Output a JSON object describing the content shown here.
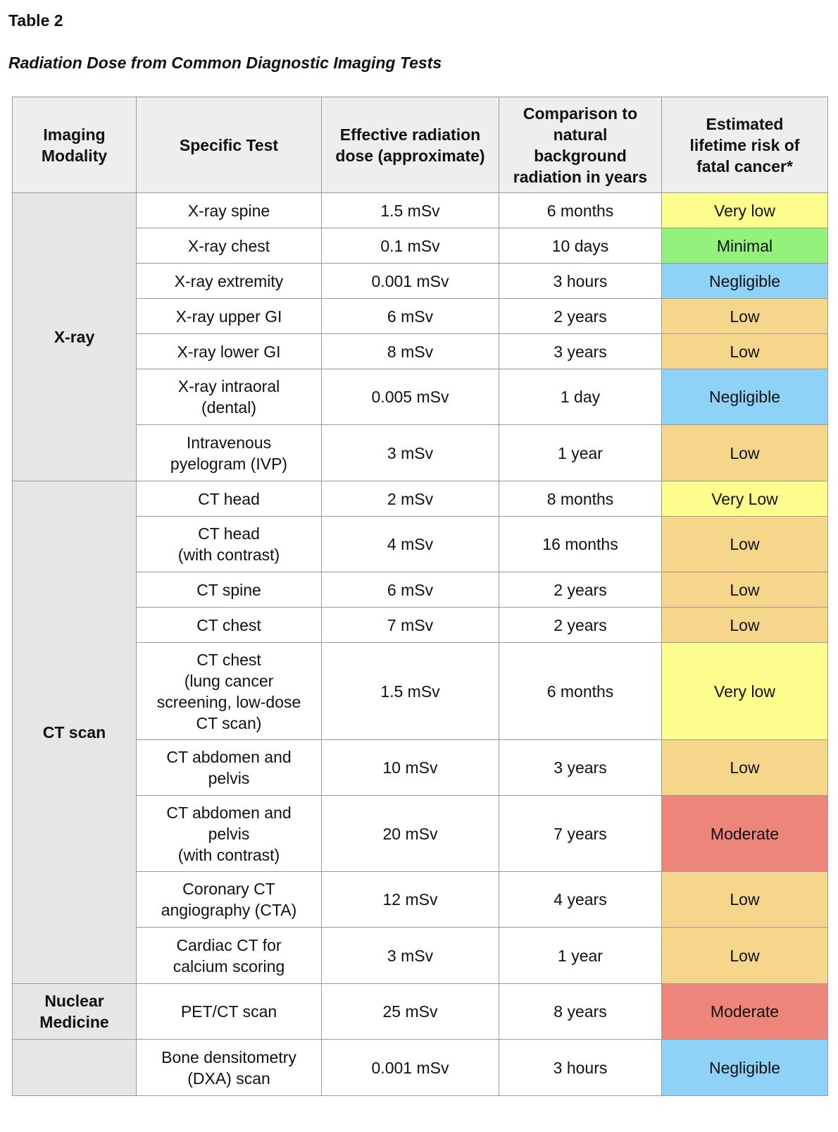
{
  "title": "Table 2",
  "subtitle": "Radiation Dose from Common Diagnostic Imaging Tests",
  "colors": {
    "header_bg": "#eeeeee",
    "modality_bg": "#e6e6e6",
    "risk_yellow": "#fdfd8e",
    "risk_green": "#93f27b",
    "risk_blue": "#8fd2f7",
    "risk_orange": "#f6d68b",
    "risk_red": "#ee857a"
  },
  "headers": {
    "modality": "Imaging\nModality",
    "test": "Specific Test",
    "dose": "Effective radiation\ndose (approximate)",
    "comparison": "Comparison to\nnatural\nbackground\nradiation in years",
    "risk": "Estimated\nlifetime risk of\nfatal cancer*"
  },
  "groups": [
    {
      "modality": "X-ray",
      "rows": [
        {
          "test": "X-ray spine",
          "dose": "1.5 mSv",
          "comparison": "6 months",
          "risk": "Very low",
          "risk_color": "yellow"
        },
        {
          "test": "X-ray chest",
          "dose": "0.1 mSv",
          "comparison": "10 days",
          "risk": "Minimal",
          "risk_color": "green"
        },
        {
          "test": "X-ray extremity",
          "dose": "0.001 mSv",
          "comparison": "3 hours",
          "risk": "Negligible",
          "risk_color": "blue"
        },
        {
          "test": "X-ray upper GI",
          "dose": "6 mSv",
          "comparison": "2 years",
          "risk": "Low",
          "risk_color": "orange"
        },
        {
          "test": "X-ray lower GI",
          "dose": "8 mSv",
          "comparison": "3 years",
          "risk": "Low",
          "risk_color": "orange"
        },
        {
          "test": "X-ray intraoral\n(dental)",
          "dose": "0.005 mSv",
          "comparison": "1 day",
          "risk": "Negligible",
          "risk_color": "blue"
        },
        {
          "test": "Intravenous\npyelogram (IVP)",
          "dose": "3 mSv",
          "comparison": "1 year",
          "risk": "Low",
          "risk_color": "orange"
        }
      ]
    },
    {
      "modality": "CT scan",
      "rows": [
        {
          "test": "CT head",
          "dose": "2 mSv",
          "comparison": "8 months",
          "risk": "Very Low",
          "risk_color": "yellow"
        },
        {
          "test": "CT head\n(with contrast)",
          "dose": "4 mSv",
          "comparison": "16 months",
          "risk": "Low",
          "risk_color": "orange"
        },
        {
          "test": "CT spine",
          "dose": "6 mSv",
          "comparison": "2 years",
          "risk": "Low",
          "risk_color": "orange"
        },
        {
          "test": "CT chest",
          "dose": "7 mSv",
          "comparison": "2 years",
          "risk": "Low",
          "risk_color": "orange"
        },
        {
          "test": "CT chest\n(lung cancer\nscreening, low-dose\nCT scan)",
          "dose": "1.5 mSv",
          "comparison": "6 months",
          "risk": "Very low",
          "risk_color": "yellow"
        },
        {
          "test": "CT abdomen and\npelvis",
          "dose": "10 mSv",
          "comparison": "3 years",
          "risk": "Low",
          "risk_color": "orange"
        },
        {
          "test": "CT abdomen and\npelvis\n(with contrast)",
          "dose": "20 mSv",
          "comparison": "7 years",
          "risk": "Moderate",
          "risk_color": "red"
        },
        {
          "test": "Coronary CT\nangiography (CTA)",
          "dose": "12 mSv",
          "comparison": "4 years",
          "risk": "Low",
          "risk_color": "orange"
        },
        {
          "test": "Cardiac CT for\ncalcium scoring",
          "dose": "3 mSv",
          "comparison": "1 year",
          "risk": "Low",
          "risk_color": "orange"
        }
      ]
    },
    {
      "modality": "Nuclear\nMedicine",
      "rows": [
        {
          "test": "PET/CT scan",
          "dose": "25 mSv",
          "comparison": "8 years",
          "risk": "Moderate",
          "risk_color": "red"
        }
      ]
    },
    {
      "modality": "",
      "rows": [
        {
          "test": "Bone densitometry\n(DXA) scan",
          "dose": "0.001 mSv",
          "comparison": "3 hours",
          "risk": "Negligible",
          "risk_color": "blue"
        }
      ]
    }
  ]
}
